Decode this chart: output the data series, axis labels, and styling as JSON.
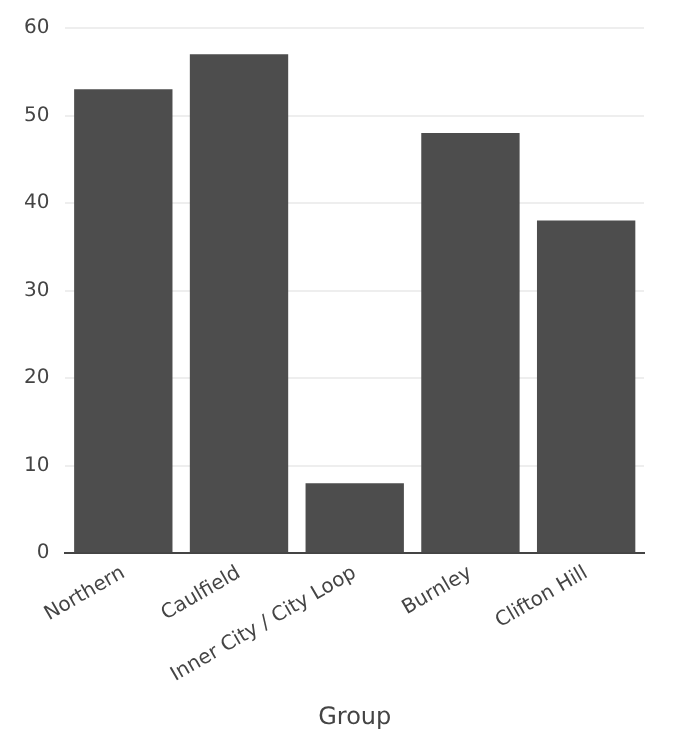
{
  "chart_data": {
    "type": "bar",
    "xlabel": "Group",
    "categories": [
      "Northern",
      "Caulfield",
      "Inner City / City Loop",
      "Burnley",
      "Clifton Hill"
    ],
    "values": [
      53,
      57,
      8,
      48,
      38
    ],
    "color": "#4d4d4d",
    "ylim": [
      0,
      60
    ],
    "yticks": [
      0,
      10,
      20,
      30,
      40,
      50,
      60
    ],
    "grid": "y",
    "legend": false
  }
}
